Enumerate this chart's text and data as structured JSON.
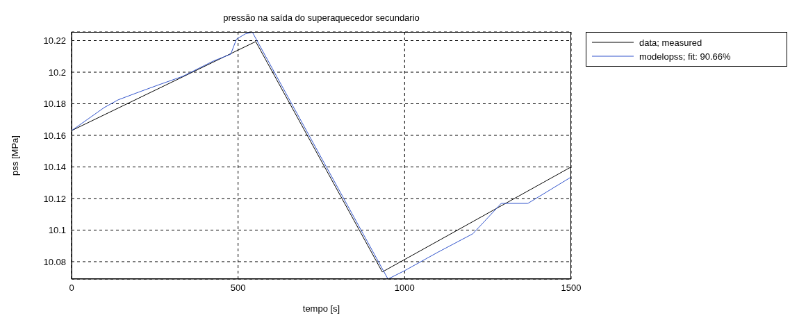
{
  "chart_data": {
    "type": "line",
    "title": "pressão na saída do superaquecedor secundario",
    "xlabel": "tempo [s]",
    "ylabel": "pss [MPa]",
    "xlim": [
      0,
      1500
    ],
    "xticks": [
      0,
      500,
      1000,
      1500
    ],
    "ylim": [
      10.069,
      10.2255
    ],
    "yticks": [
      10.08,
      10.1,
      10.12,
      10.14,
      10.16,
      10.18,
      10.2,
      10.22
    ],
    "grid": true,
    "legend": "top right",
    "line_style": "solid",
    "marker": "none",
    "series": [
      {
        "name": "data; measured",
        "color": "#000000",
        "x": [
          0,
          553,
          933,
          1500
        ],
        "values": [
          10.163,
          10.2194,
          10.0735,
          10.14
        ]
      },
      {
        "name": "modelopss; fit: 90.66%",
        "color": "#3355cc",
        "x": [
          0,
          98,
          140,
          202,
          259,
          334,
          426,
          478,
          495,
          522,
          543,
          950,
          1000,
          1100,
          1205,
          1290,
          1370,
          1500
        ],
        "values": [
          10.163,
          10.1776,
          10.1825,
          10.1874,
          10.1918,
          10.1974,
          10.2071,
          10.2114,
          10.2209,
          10.2243,
          10.2253,
          10.069,
          10.0743,
          10.086,
          10.0977,
          10.1169,
          10.1169,
          10.1336
        ]
      }
    ]
  }
}
